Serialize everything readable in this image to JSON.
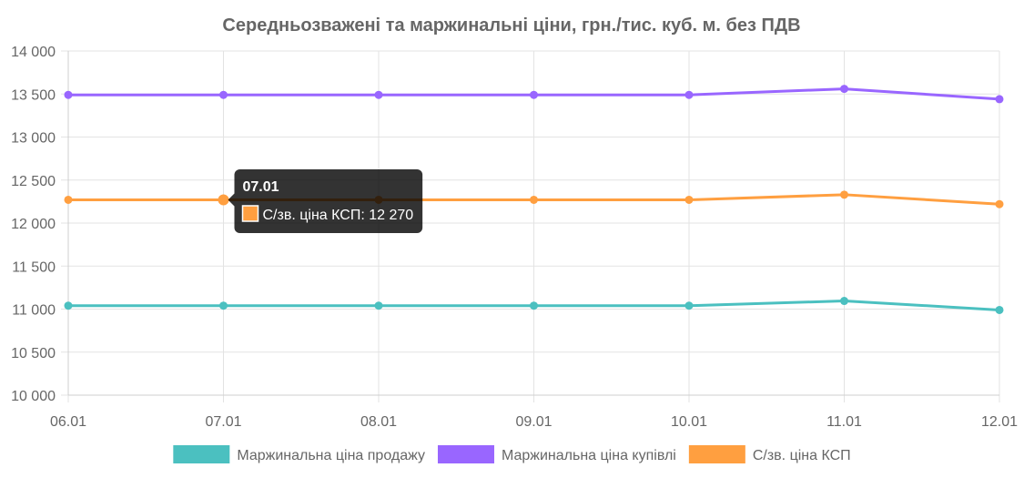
{
  "chart_data": {
    "type": "line",
    "title": "Середньозважені та маржинальні ціни, грн./тис. куб. м. без ПДВ",
    "categories": [
      "06.01",
      "07.01",
      "08.01",
      "09.01",
      "10.01",
      "11.01",
      "12.01"
    ],
    "ylim": [
      10000,
      14000
    ],
    "yticks": [
      10000,
      10500,
      11000,
      11500,
      12000,
      12500,
      13000,
      13500,
      14000
    ],
    "ytick_labels": [
      "10 000",
      "10 500",
      "11 000",
      "11 500",
      "12 000",
      "12 500",
      "13 000",
      "13 500",
      "14 000"
    ],
    "grid": true,
    "legend": "bottom",
    "series": [
      {
        "name": "Маржинальна ціна продажу",
        "color": "#4bc0c0",
        "values": [
          11040,
          11040,
          11040,
          11040,
          11040,
          11095,
          10990
        ]
      },
      {
        "name": "Маржинальна ціна купівлі",
        "color": "#9966ff",
        "values": [
          13490,
          13490,
          13490,
          13490,
          13490,
          13560,
          13440
        ]
      },
      {
        "name": "С/зв. ціна КСП",
        "color": "#ff9f40",
        "values": [
          12270,
          12270,
          12270,
          12270,
          12270,
          12330,
          12220
        ]
      }
    ],
    "tooltip": {
      "title": "07.01",
      "label": "С/зв. ціна КСП: 12 270",
      "series_index": 2,
      "category_index": 1
    }
  }
}
